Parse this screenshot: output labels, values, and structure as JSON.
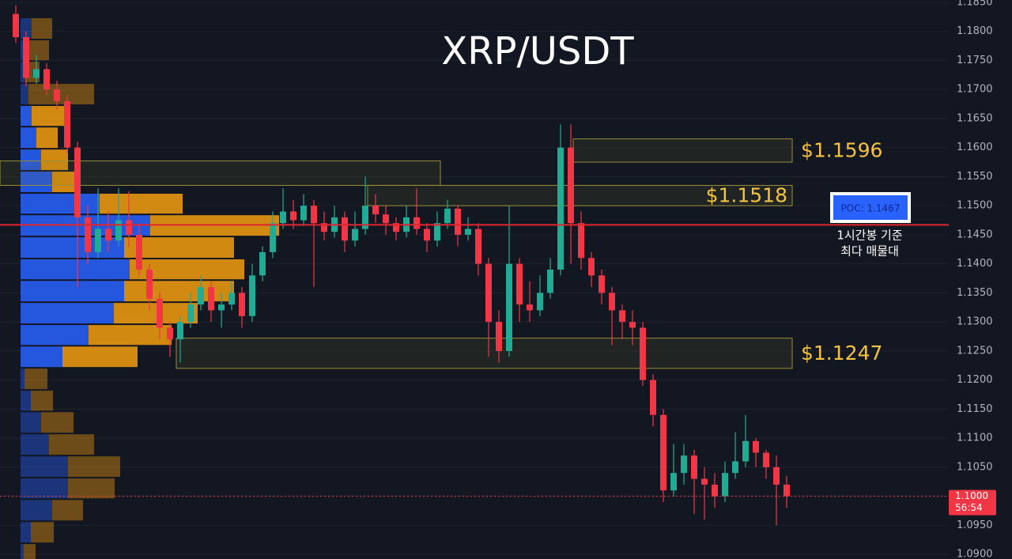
{
  "chart_data": {
    "type": "candlestick",
    "title": "XRP/USDT",
    "ylim": [
      1.0892,
      1.1854
    ],
    "yticks": [
      {
        "value": 1.185,
        "label": "1.1850"
      },
      {
        "value": 1.18,
        "label": "1.1800"
      },
      {
        "value": 1.175,
        "label": "1.1750"
      },
      {
        "value": 1.17,
        "label": "1.1700"
      },
      {
        "value": 1.165,
        "label": "1.1650"
      },
      {
        "value": 1.16,
        "label": "1.1600"
      },
      {
        "value": 1.155,
        "label": "1.1550"
      },
      {
        "value": 1.15,
        "label": "1.1500"
      },
      {
        "value": 1.145,
        "label": "1.1450"
      },
      {
        "value": 1.14,
        "label": "1.1400"
      },
      {
        "value": 1.135,
        "label": "1.1350"
      },
      {
        "value": 1.13,
        "label": "1.1300"
      },
      {
        "value": 1.125,
        "label": "1.1250"
      },
      {
        "value": 1.12,
        "label": "1.1200"
      },
      {
        "value": 1.115,
        "label": "1.1150"
      },
      {
        "value": 1.11,
        "label": "1.1100"
      },
      {
        "value": 1.105,
        "label": "1.1050"
      },
      {
        "value": 1.1,
        "label": "1.1000"
      },
      {
        "value": 1.095,
        "label": "1.0950"
      },
      {
        "value": 1.09,
        "label": "1.0900"
      }
    ],
    "grid": true,
    "up_color": "#22ab94",
    "down_color": "#f23645",
    "ohlc": [
      [
        1.183,
        1.1845,
        1.178,
        1.179
      ],
      [
        1.179,
        1.18,
        1.1705,
        1.172
      ],
      [
        1.172,
        1.176,
        1.171,
        1.1735
      ],
      [
        1.1735,
        1.1745,
        1.169,
        1.17
      ],
      [
        1.17,
        1.1715,
        1.1665,
        1.168
      ],
      [
        1.168,
        1.169,
        1.159,
        1.16
      ],
      [
        1.16,
        1.161,
        1.136,
        1.148
      ],
      [
        1.148,
        1.15,
        1.14,
        1.142
      ],
      [
        1.142,
        1.153,
        1.141,
        1.146
      ],
      [
        1.146,
        1.149,
        1.142,
        1.144
      ],
      [
        1.144,
        1.153,
        1.143,
        1.1475
      ],
      [
        1.1475,
        1.1525,
        1.143,
        1.145
      ],
      [
        1.145,
        1.147,
        1.138,
        1.139
      ],
      [
        1.139,
        1.14,
        1.132,
        1.134
      ],
      [
        1.134,
        1.135,
        1.127,
        1.129
      ],
      [
        1.129,
        1.13,
        1.124,
        1.127
      ],
      [
        1.127,
        1.131,
        1.123,
        1.13
      ],
      [
        1.13,
        1.135,
        1.129,
        1.133
      ],
      [
        1.133,
        1.138,
        1.132,
        1.136
      ],
      [
        1.136,
        1.137,
        1.13,
        1.132
      ],
      [
        1.132,
        1.135,
        1.129,
        1.133
      ],
      [
        1.133,
        1.137,
        1.132,
        1.135
      ],
      [
        1.135,
        1.136,
        1.129,
        1.131
      ],
      [
        1.131,
        1.14,
        1.13,
        1.138
      ],
      [
        1.138,
        1.143,
        1.137,
        1.142
      ],
      [
        1.142,
        1.149,
        1.141,
        1.147
      ],
      [
        1.147,
        1.153,
        1.146,
        1.149
      ],
      [
        1.149,
        1.151,
        1.146,
        1.1475
      ],
      [
        1.1475,
        1.152,
        1.1465,
        1.15
      ],
      [
        1.15,
        1.151,
        1.136,
        1.147
      ],
      [
        1.147,
        1.149,
        1.144,
        1.1455
      ],
      [
        1.1455,
        1.15,
        1.1445,
        1.148
      ],
      [
        1.148,
        1.149,
        1.142,
        1.144
      ],
      [
        1.144,
        1.149,
        1.143,
        1.146
      ],
      [
        1.146,
        1.155,
        1.145,
        1.15
      ],
      [
        1.15,
        1.152,
        1.147,
        1.1485
      ],
      [
        1.1485,
        1.15,
        1.145,
        1.147
      ],
      [
        1.147,
        1.148,
        1.144,
        1.1455
      ],
      [
        1.1455,
        1.15,
        1.1445,
        1.148
      ],
      [
        1.148,
        1.153,
        1.145,
        1.146
      ],
      [
        1.146,
        1.147,
        1.142,
        1.144
      ],
      [
        1.144,
        1.149,
        1.143,
        1.147
      ],
      [
        1.147,
        1.151,
        1.146,
        1.1495
      ],
      [
        1.1495,
        1.15,
        1.143,
        1.145
      ],
      [
        1.145,
        1.148,
        1.144,
        1.146
      ],
      [
        1.146,
        1.147,
        1.138,
        1.14
      ],
      [
        1.14,
        1.141,
        1.124,
        1.13
      ],
      [
        1.13,
        1.132,
        1.123,
        1.125
      ],
      [
        1.125,
        1.15,
        1.124,
        1.14
      ],
      [
        1.14,
        1.141,
        1.13,
        1.133
      ],
      [
        1.133,
        1.137,
        1.13,
        1.132
      ],
      [
        1.132,
        1.138,
        1.131,
        1.135
      ],
      [
        1.135,
        1.141,
        1.134,
        1.139
      ],
      [
        1.139,
        1.164,
        1.138,
        1.16
      ],
      [
        1.16,
        1.164,
        1.14,
        1.147
      ],
      [
        1.147,
        1.149,
        1.139,
        1.141
      ],
      [
        1.141,
        1.142,
        1.136,
        1.138
      ],
      [
        1.138,
        1.139,
        1.133,
        1.135
      ],
      [
        1.135,
        1.136,
        1.126,
        1.132
      ],
      [
        1.132,
        1.133,
        1.127,
        1.13
      ],
      [
        1.13,
        1.132,
        1.126,
        1.129
      ],
      [
        1.129,
        1.13,
        1.119,
        1.12
      ],
      [
        1.12,
        1.121,
        1.112,
        1.114
      ],
      [
        1.114,
        1.115,
        1.099,
        1.101
      ],
      [
        1.101,
        1.109,
        1.1,
        1.104
      ],
      [
        1.104,
        1.109,
        1.102,
        1.107
      ],
      [
        1.107,
        1.108,
        1.097,
        1.103
      ],
      [
        1.103,
        1.105,
        1.096,
        1.102
      ],
      [
        1.102,
        1.104,
        1.098,
        1.1
      ],
      [
        1.1,
        1.106,
        1.099,
        1.104
      ],
      [
        1.104,
        1.111,
        1.103,
        1.106
      ],
      [
        1.106,
        1.114,
        1.105,
        1.1095
      ],
      [
        1.1095,
        1.11,
        1.105,
        1.1075
      ],
      [
        1.1075,
        1.108,
        1.103,
        1.105
      ],
      [
        1.105,
        1.107,
        1.095,
        1.102
      ],
      [
        1.102,
        1.1035,
        1.098,
        1.1
      ]
    ],
    "profile": {
      "bins": [
        1.1824,
        1.1786,
        1.1749,
        1.1711,
        1.1673,
        1.1636,
        1.1598,
        1.156,
        1.1522,
        1.1485,
        1.1447,
        1.1409,
        1.1372,
        1.1334,
        1.1296,
        1.1259,
        1.1221,
        1.1183,
        1.1146,
        1.1108,
        1.107,
        1.1032,
        1.0995,
        1.0957,
        1.0919,
        1.0882
      ],
      "buy": [
        14,
        10,
        6,
        10,
        14,
        20,
        26,
        40,
        100,
        164,
        131,
        138,
        131,
        118,
        86,
        53,
        5,
        13,
        26,
        36,
        60,
        60,
        40,
        13,
        4
      ],
      "sell": [
        26,
        26,
        18,
        83,
        45,
        27,
        34,
        35,
        105,
        163,
        139,
        145,
        139,
        106,
        105,
        95,
        29,
        28,
        41,
        57,
        66,
        59,
        39,
        29,
        15
      ],
      "value_area": [
        1.1221,
        1.1673
      ],
      "buy_color": "#2962ff",
      "sell_color": "#f59d0e"
    },
    "zones": [
      {
        "top": 1.1615,
        "bottom": 1.1575,
        "label": "$1.1596"
      },
      {
        "top": 1.1577,
        "bottom": 1.1535
      },
      {
        "top": 1.1535,
        "bottom": 1.15,
        "label": "$1.1518"
      },
      {
        "top": 1.1272,
        "bottom": 1.122,
        "label": "$1.1247"
      }
    ],
    "poc": {
      "value": 1.1467,
      "label": "POC: 1.1467",
      "note": [
        "1시간봉 기준",
        "최다 매물대"
      ]
    },
    "last_price": {
      "value": 1.1,
      "label": "1.1000",
      "countdown": "56:54"
    }
  }
}
